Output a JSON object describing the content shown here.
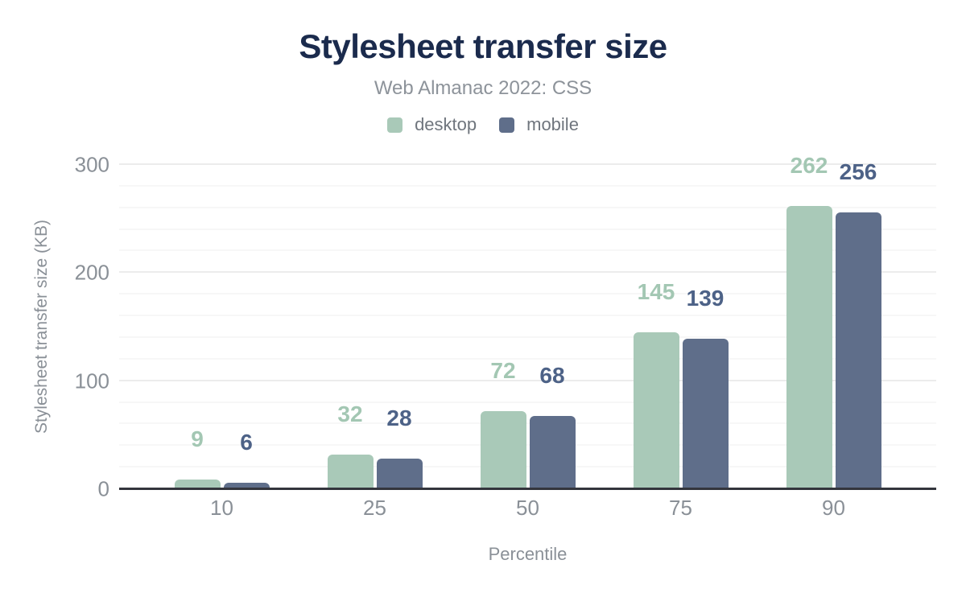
{
  "chart_data": {
    "type": "bar",
    "title": "Stylesheet transfer size",
    "subtitle": "Web Almanac 2022: CSS",
    "xlabel": "Percentile",
    "ylabel": "Stylesheet transfer size (KB)",
    "categories": [
      "10",
      "25",
      "50",
      "75",
      "90"
    ],
    "series": [
      {
        "name": "desktop",
        "color": "#a9c9b8",
        "label_color": "#a3c7b3",
        "values": [
          9,
          32,
          72,
          145,
          262
        ]
      },
      {
        "name": "mobile",
        "color": "#5f6e8a",
        "label_color": "#4d6287",
        "values": [
          6,
          28,
          68,
          139,
          256
        ]
      }
    ],
    "ylim": [
      0,
      300
    ],
    "yticks": [
      0,
      100,
      200,
      300
    ],
    "grid": {
      "minor_step": 20,
      "major_step": 100,
      "on": true
    },
    "legend_position": "top",
    "data_labels": true
  },
  "colors": {
    "title": "#1b2b4d",
    "subtitle": "#8d939a",
    "legend_text": "#6f757d",
    "axis_text": "#8a9097",
    "baseline": "#33353c",
    "gridline_major": "#ececec",
    "gridline_minor": "#f7f7f7",
    "background": "#ffffff"
  }
}
